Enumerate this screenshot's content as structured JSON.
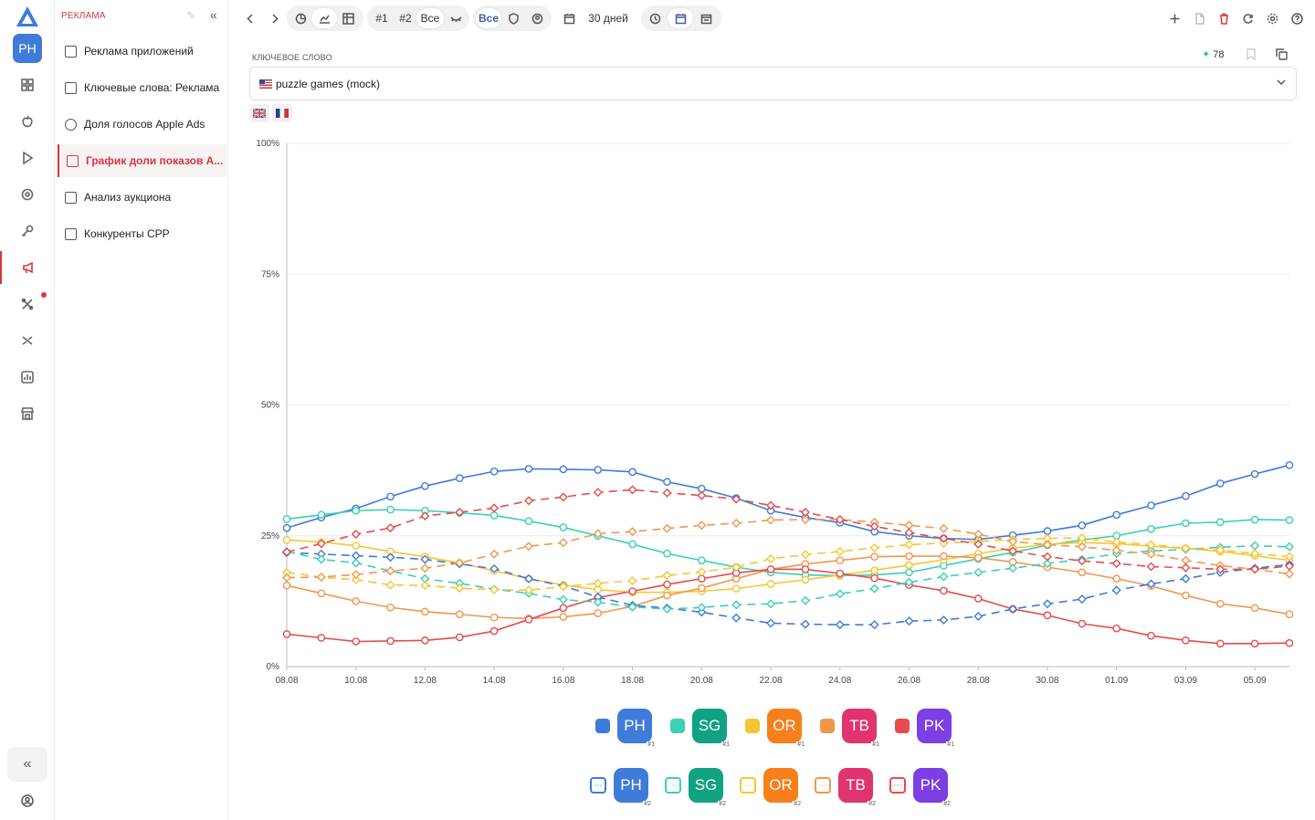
{
  "section": {
    "title": "РЕКЛАМА"
  },
  "rail": {
    "avatar": "PH"
  },
  "sidebar": {
    "items": [
      {
        "label": "Реклама приложений"
      },
      {
        "label": "Ключевые слова: Реклама"
      },
      {
        "label": "Доля голосов Apple Ads"
      },
      {
        "label": "График доли показов А..."
      },
      {
        "label": "Анализ аукциона"
      },
      {
        "label": "Конкуренты CPP"
      }
    ],
    "active_index": 3
  },
  "toolbar": {
    "rank1": "#1",
    "rank2": "#2",
    "all_ranks": "Все",
    "all_devices": "Все",
    "period": "30 дней"
  },
  "keyword": {
    "label": "КЛЮЧЕВОЕ СЛОВО",
    "value": "puzzle games (mock)",
    "score": "78"
  },
  "colors": {
    "accent": "#d9363e",
    "PH": "#3f7bd9",
    "SG": "#3ccfb4",
    "OR": "#f7c531",
    "TB": "#f0974b",
    "PK": "#e64b4b"
  },
  "chart_data": {
    "type": "line",
    "x": [
      "08.08",
      "09.08",
      "10.08",
      "11.08",
      "12.08",
      "13.08",
      "14.08",
      "15.08",
      "16.08",
      "17.08",
      "18.08",
      "19.08",
      "20.08",
      "21.08",
      "22.08",
      "23.08",
      "24.08",
      "25.08",
      "26.08",
      "27.08",
      "28.08",
      "29.08",
      "30.08",
      "31.08",
      "01.09",
      "02.09",
      "03.09",
      "04.09",
      "05.09",
      "06.09"
    ],
    "x_ticks": [
      "08.08",
      "10.08",
      "12.08",
      "14.08",
      "16.08",
      "18.08",
      "20.08",
      "22.08",
      "24.08",
      "26.08",
      "28.08",
      "30.08",
      "01.09",
      "03.09",
      "05.09"
    ],
    "y_ticks": [
      "0%",
      "25%",
      "50%",
      "75%",
      "100%"
    ],
    "ylim": [
      0,
      100
    ],
    "grid": true,
    "series": [
      {
        "name": "PH",
        "rank": "#1",
        "color": "#3f7bd9",
        "style": "solid",
        "values": [
          26.5,
          28.5,
          30.2,
          32.5,
          34.5,
          36,
          37.3,
          37.8,
          37.7,
          37.6,
          37.2,
          35.3,
          34,
          32.2,
          29.8,
          28.5,
          27.5,
          25.8,
          25,
          24.5,
          24.3,
          25.1,
          25.9,
          27,
          29,
          30.8,
          32.6,
          35,
          36.8,
          38.5
        ]
      },
      {
        "name": "SG",
        "rank": "#1",
        "color": "#3ccfb4",
        "style": "solid",
        "values": [
          28.2,
          29,
          29.8,
          30,
          29.8,
          29.4,
          28.9,
          27.8,
          26.6,
          25,
          23.4,
          21.6,
          20.3,
          19,
          18,
          17.5,
          17.4,
          17.5,
          18,
          19.3,
          20.6,
          21.8,
          23.2,
          24.2,
          25,
          26.3,
          27.4,
          27.6,
          28.1,
          28
        ]
      },
      {
        "name": "OR",
        "rank": "#1",
        "color": "#f7c531",
        "style": "solid",
        "values": [
          24.2,
          23.8,
          23.1,
          22,
          21,
          19.8,
          18.3,
          16.8,
          15.6,
          14.7,
          14.2,
          14.2,
          14.4,
          14.9,
          15.8,
          16.6,
          17.5,
          18.4,
          19.4,
          20.4,
          21.6,
          22.6,
          23.4,
          23.7,
          23.5,
          23,
          22.6,
          22,
          21.2,
          20.3
        ]
      },
      {
        "name": "TB",
        "rank": "#1",
        "color": "#f0974b",
        "style": "solid",
        "values": [
          15.5,
          14,
          12.5,
          11.3,
          10.5,
          10,
          9.4,
          9.2,
          9.5,
          10.2,
          11.5,
          13.6,
          15,
          16.8,
          18.6,
          19.6,
          20.3,
          21,
          21.1,
          21.1,
          20.8,
          20,
          19,
          18,
          16.8,
          15.4,
          13.6,
          12,
          11.2,
          10
        ]
      },
      {
        "name": "PK",
        "rank": "#1",
        "color": "#e64b4b",
        "style": "solid",
        "values": [
          6.2,
          5.5,
          4.8,
          4.9,
          5,
          5.6,
          6.8,
          9,
          11.2,
          13.2,
          14.4,
          15.7,
          16.8,
          17.9,
          18.6,
          18.6,
          17.8,
          16.9,
          15.6,
          14.5,
          13,
          11,
          9.8,
          8.2,
          7.3,
          5.9,
          5,
          4.4,
          4.4,
          4.5
        ]
      },
      {
        "name": "PH",
        "rank": "#2",
        "color": "#3f7bd9",
        "style": "dashed",
        "values": [
          21.8,
          21.5,
          21.2,
          20.9,
          20.5,
          19.6,
          18.7,
          16.8,
          15.4,
          13.3,
          11.7,
          11.2,
          10.4,
          9.3,
          8.3,
          8.1,
          8,
          8,
          8.7,
          8.9,
          9.6,
          11,
          12,
          12.9,
          14.6,
          15.8,
          16.8,
          18,
          18.8,
          19.5
        ]
      },
      {
        "name": "SG",
        "rank": "#2",
        "color": "#3ccfb4",
        "style": "dashed",
        "values": [
          22,
          20.5,
          19.8,
          18.3,
          16.8,
          15.9,
          14.8,
          14,
          12.8,
          12.3,
          11.4,
          11,
          11.3,
          11.8,
          12,
          12.6,
          13.9,
          14.9,
          16.1,
          17.2,
          18,
          18.8,
          19.7,
          20.5,
          21.6,
          22.1,
          22.4,
          22.8,
          23.1,
          22.9
        ]
      },
      {
        "name": "OR",
        "rank": "#2",
        "color": "#f7c531",
        "style": "dashed",
        "values": [
          18,
          17.1,
          16.6,
          15.6,
          15.5,
          15,
          14.7,
          14.6,
          15.3,
          15.9,
          16.4,
          17.4,
          18.1,
          19,
          20.6,
          21.4,
          22,
          22.7,
          23.3,
          23.6,
          23.9,
          24.3,
          24.5,
          24.6,
          23.8,
          23.3,
          22.6,
          22.3,
          21.6,
          21
        ]
      },
      {
        "name": "TB",
        "rank": "#2",
        "color": "#f0974b",
        "style": "dashed",
        "values": [
          17,
          17.1,
          17.6,
          18.3,
          18.8,
          19.8,
          21.5,
          23,
          23.7,
          25.4,
          25.8,
          26.4,
          27,
          27.4,
          28,
          28.1,
          28.1,
          27.6,
          27,
          26.4,
          25.3,
          23.9,
          23.3,
          22.9,
          22.2,
          21.5,
          20.3,
          19.3,
          18.6,
          17.7
        ]
      },
      {
        "name": "PK",
        "rank": "#2",
        "color": "#e64b4b",
        "style": "dashed",
        "values": [
          21.9,
          23.5,
          25.3,
          26.5,
          28.8,
          29.5,
          30.3,
          31.7,
          32.4,
          33.3,
          33.8,
          33.2,
          32.7,
          32,
          30.8,
          29.5,
          28.1,
          26.8,
          25.6,
          24.5,
          23.4,
          22.1,
          21,
          20.2,
          19.7,
          19.1,
          18.9,
          18.6,
          18.6,
          19.2
        ]
      }
    ]
  },
  "legend": {
    "row1": [
      {
        "app": "PH",
        "rank": "#1"
      },
      {
        "app": "SG",
        "rank": "#1"
      },
      {
        "app": "OR",
        "rank": "#1"
      },
      {
        "app": "TB",
        "rank": "#1"
      },
      {
        "app": "PK",
        "rank": "#1"
      }
    ],
    "row2": [
      {
        "app": "PH",
        "rank": "#2"
      },
      {
        "app": "SG",
        "rank": "#2"
      },
      {
        "app": "OR",
        "rank": "#2"
      },
      {
        "app": "TB",
        "rank": "#2"
      },
      {
        "app": "PK",
        "rank": "#2"
      }
    ]
  }
}
